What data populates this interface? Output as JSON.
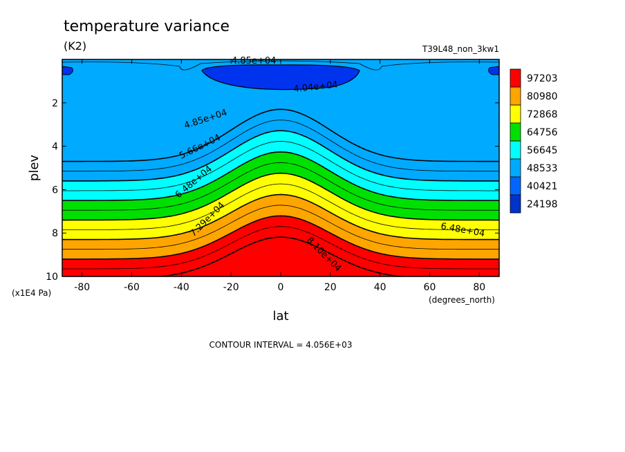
{
  "chart_data": {
    "type": "contour",
    "title": "temperature variance",
    "units": "(K2)",
    "run_id": "T39L48_non_3kw1",
    "xlabel": "lat",
    "ylabel": "plev",
    "x_units": "(degrees_north)",
    "y_units": "(x1E4 Pa)",
    "xlim": [
      -88,
      88
    ],
    "ylim": [
      10,
      0
    ],
    "x_ticks": [
      -80,
      -60,
      -40,
      -20,
      0,
      20,
      40,
      60,
      80
    ],
    "x_tick_labels": [
      "-80",
      "-60",
      "-40",
      "-20",
      "0",
      "20",
      "40",
      "60",
      "80"
    ],
    "y_ticks": [
      2,
      4,
      6,
      8,
      10
    ],
    "y_tick_labels": [
      "2",
      "4",
      "6",
      "8",
      "10"
    ],
    "contour_interval_text": "CONTOUR INTERVAL = 4.056E+03",
    "colorbar": {
      "labels": [
        "97203",
        "80980",
        "72868",
        "64756",
        "56645",
        "48533",
        "40421",
        "24198"
      ],
      "colors": [
        "#ff0000",
        "#ffa500",
        "#ffff00",
        "#00e000",
        "#00ffff",
        "#00aaff",
        "#0066ff",
        "#0033cc"
      ]
    },
    "contour_labels": [
      "4.85e+04",
      "4.04e+04",
      "4.85e+04",
      "5.66e+04",
      "6.48e+04",
      "6.48e+04",
      "7.29e+04",
      "8.10e+04"
    ],
    "levels": [
      {
        "value": 40421,
        "color": "#0066ff"
      },
      {
        "value": 44477,
        "color": "#00aaff"
      },
      {
        "value": 48533,
        "color": "#00aaff"
      },
      {
        "value": 52589,
        "color": "#00ffff"
      },
      {
        "value": 56645,
        "color": "#00ffff"
      },
      {
        "value": 60700,
        "color": "#00e000"
      },
      {
        "value": 64756,
        "color": "#00e000"
      },
      {
        "value": 68812,
        "color": "#ffff00"
      },
      {
        "value": 72868,
        "color": "#ffff00"
      },
      {
        "value": 76924,
        "color": "#ffa500"
      },
      {
        "value": 80980,
        "color": "#ffa500"
      },
      {
        "value": 85036,
        "color": "#ff0000"
      },
      {
        "value": 89092,
        "color": "#ff0000"
      }
    ]
  }
}
